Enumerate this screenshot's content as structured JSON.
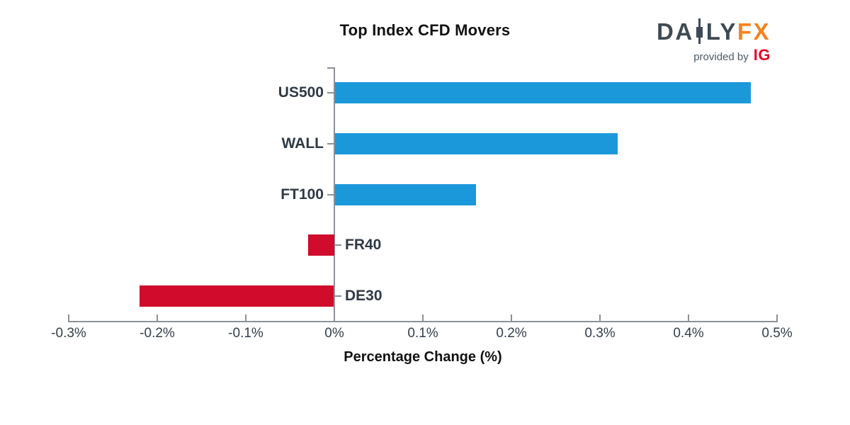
{
  "header": {
    "logo": {
      "text_left": "DA",
      "text_right": "LY",
      "text_fx": "FX",
      "tagline": "provided by",
      "provider": "IG",
      "colors": {
        "letters": "#3e4a55",
        "fx": "#f6821f",
        "tagline": "#4e5a66",
        "provider": "#e40520"
      }
    }
  },
  "chart_data": {
    "type": "bar",
    "orientation": "horizontal",
    "title": "Top Index CFD Movers",
    "xlabel": "Percentage Change (%)",
    "categories": [
      "US500",
      "WALL",
      "FT100",
      "FR40",
      "DE30"
    ],
    "values": [
      0.47,
      0.32,
      0.16,
      -0.03,
      -0.22
    ],
    "xlim": [
      -0.3,
      0.5
    ],
    "xticks": [
      -0.3,
      -0.2,
      -0.1,
      0,
      0.1,
      0.2,
      0.3,
      0.4,
      0.5
    ],
    "xtick_labels": [
      "-0.3%",
      "-0.2%",
      "-0.1%",
      "0%",
      "0.1%",
      "0.2%",
      "0.3%",
      "0.4%",
      "0.5%"
    ],
    "grid": false,
    "legend": "none",
    "bar_colors": {
      "positive": "#1b98d9",
      "negative": "#d00b2c"
    },
    "axis_color": "#8c9196",
    "tick_text_color": "#333e49",
    "category_text_color": "#2f3a46",
    "title_color": "#111111"
  }
}
